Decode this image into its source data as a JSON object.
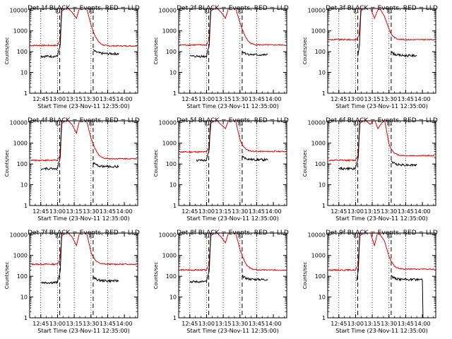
{
  "chart_data": {
    "type": "line",
    "layout": "3x3 grid",
    "x_tick_labels": [
      "12:45",
      "13:00",
      "13:15",
      "13:30",
      "13:45",
      "14:00"
    ],
    "y_tick_labels": [
      "1",
      "10",
      "100",
      "1000",
      "10000"
    ],
    "y_scale": "log",
    "ylim": [
      1,
      12000
    ],
    "xlim_minutes_after_start": [
      0,
      97
    ],
    "ylabel": "Counts/sec",
    "xlabel": "Start Time (23-Nov-11 12:35:00)",
    "series_names": [
      "Events",
      "LLD"
    ],
    "series_colors": {
      "Events": "#000000",
      "LLD": "#e00000"
    },
    "panels": [
      {
        "title": "Det 1f BLACK = Events, RED = LLD",
        "lld_pre": 200,
        "events_pre": 60,
        "lld_post": 190,
        "events_post": 80,
        "events_post_start": 24,
        "events_end": 80,
        "lld_rise_at": 27,
        "lld_peaks": [
          [
            29,
            9000
          ],
          [
            33,
            14000
          ],
          [
            38,
            8000
          ],
          [
            42,
            4000
          ],
          [
            45,
            14000
          ],
          [
            51,
            13000
          ],
          [
            55,
            2000
          ]
        ],
        "dashed_lines": [
          27,
          57
        ],
        "dotted_lines": [
          10,
          25,
          40,
          55,
          70
        ]
      },
      {
        "title": "Det 2f BLACK = Events, RED = LLD",
        "lld_pre": 210,
        "events_pre": 60,
        "lld_post": 210,
        "events_post": 70,
        "events_post_start": 24,
        "events_end": 80,
        "lld_rise_at": 27,
        "lld_peaks": [
          [
            29,
            9000
          ],
          [
            33,
            14000
          ],
          [
            38,
            8000
          ],
          [
            42,
            4000
          ],
          [
            45,
            14000
          ],
          [
            51,
            13000
          ],
          [
            55,
            2500
          ]
        ],
        "dashed_lines": [
          27,
          57
        ],
        "dotted_lines": [
          10,
          25,
          40,
          55,
          70
        ]
      },
      {
        "title": "Det 3f BLACK = Events, RED = LLD",
        "lld_pre": 380,
        "events_pre": null,
        "lld_post": 380,
        "events_post": 65,
        "events_post_start": 24,
        "events_end": 80,
        "lld_rise_at": 28,
        "lld_peaks": [
          [
            30,
            9000
          ],
          [
            33,
            14000
          ],
          [
            38,
            14000
          ],
          [
            42,
            4000
          ],
          [
            46,
            14000
          ],
          [
            51,
            5000
          ],
          [
            56,
            900
          ]
        ],
        "dashed_lines": [
          27,
          57
        ],
        "dotted_lines": [
          10,
          25,
          40,
          55,
          70
        ]
      },
      {
        "title": "Det 4f BLACK = Events, RED = LLD",
        "lld_pre": 150,
        "events_pre": 60,
        "lld_post": 180,
        "events_post": 75,
        "events_post_start": 24,
        "events_end": 80,
        "lld_rise_at": 27,
        "lld_peaks": [
          [
            29,
            9000
          ],
          [
            33,
            14000
          ],
          [
            38,
            8000
          ],
          [
            42,
            3000
          ],
          [
            45,
            14000
          ],
          [
            51,
            13000
          ],
          [
            55,
            1800
          ]
        ],
        "dashed_lines": [
          27,
          57
        ],
        "dotted_lines": [
          10,
          25,
          40,
          55,
          70
        ]
      },
      {
        "title": "Det 5f BLACK = Events, RED = LLD",
        "lld_pre": 380,
        "events_pre": 150,
        "lld_post": 400,
        "events_post": 160,
        "events_post_start": 16,
        "events_end": 80,
        "lld_rise_at": 27,
        "lld_peaks": [
          [
            29,
            9000
          ],
          [
            33,
            14000
          ],
          [
            38,
            8000
          ],
          [
            42,
            5000
          ],
          [
            45,
            14000
          ],
          [
            51,
            13000
          ],
          [
            55,
            1500
          ]
        ],
        "dashed_lines": [
          27,
          57
        ],
        "dotted_lines": [
          10,
          25,
          40,
          55,
          70
        ]
      },
      {
        "title": "Det 6f BLACK = Events, RED = LLD",
        "lld_pre": 150,
        "events_pre": 60,
        "lld_post": 250,
        "events_post": 90,
        "events_post_start": 24,
        "events_end": 80,
        "lld_rise_at": 27,
        "lld_peaks": [
          [
            29,
            9000
          ],
          [
            33,
            14000
          ],
          [
            38,
            8000
          ],
          [
            42,
            14000
          ],
          [
            45,
            5000
          ],
          [
            51,
            14000
          ],
          [
            55,
            900
          ]
        ],
        "dashed_lines": [
          27,
          57
        ],
        "dotted_lines": [
          10,
          25,
          40,
          55,
          70
        ]
      },
      {
        "title": "Det 7f BLACK = Events, RED = LLD",
        "lld_pre": 380,
        "events_pre": 50,
        "lld_post": 380,
        "events_post": 60,
        "events_post_start": 24,
        "events_end": 80,
        "lld_rise_at": 27,
        "lld_peaks": [
          [
            29,
            9000
          ],
          [
            33,
            14000
          ],
          [
            38,
            8000
          ],
          [
            42,
            3000
          ],
          [
            45,
            14000
          ],
          [
            51,
            13000
          ],
          [
            55,
            1500
          ]
        ],
        "dashed_lines": [
          27,
          57
        ],
        "dotted_lines": [
          10,
          25,
          40,
          55,
          70
        ]
      },
      {
        "title": "Det 8f BLACK = Events, RED = LLD",
        "lld_pre": 200,
        "events_pre": 55,
        "lld_post": 200,
        "events_post": 70,
        "events_post_start": 24,
        "events_end": 80,
        "lld_rise_at": 27,
        "lld_peaks": [
          [
            29,
            9000
          ],
          [
            33,
            14000
          ],
          [
            38,
            8000
          ],
          [
            42,
            4000
          ],
          [
            45,
            14000
          ],
          [
            51,
            13000
          ],
          [
            55,
            2000
          ]
        ],
        "dashed_lines": [
          27,
          57
        ],
        "dotted_lines": [
          10,
          25,
          40,
          55,
          70
        ]
      },
      {
        "title": "Det 9f BLACK = Events, RED = LLD",
        "lld_pre": 200,
        "events_pre": null,
        "lld_post": 220,
        "events_post": 70,
        "events_post_start": 24,
        "events_end": 85,
        "lld_rise_at": 27,
        "lld_peaks": [
          [
            29,
            9000
          ],
          [
            33,
            14000
          ],
          [
            38,
            14000
          ],
          [
            42,
            3000
          ],
          [
            45,
            14000
          ],
          [
            51,
            5000
          ],
          [
            55,
            900
          ]
        ],
        "dashed_lines": [
          27,
          57
        ],
        "dotted_lines": [
          10,
          25,
          40,
          55,
          70
        ]
      }
    ]
  }
}
